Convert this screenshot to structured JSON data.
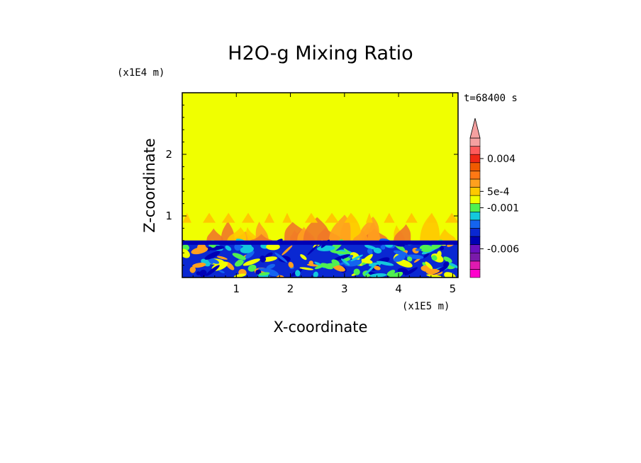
{
  "chart_data": {
    "type": "heatmap",
    "title": "H2O-g Mixing Ratio",
    "xlabel": "X-coordinate",
    "ylabel": "Z-coordinate",
    "x_unit": "(x1E5 m)",
    "y_unit": "(x1E4 m)",
    "time_label": "t=68400 s",
    "xlim": [
      0,
      5.1
    ],
    "ylim": [
      0,
      3.0
    ],
    "x_ticks": [
      1,
      2,
      3,
      4,
      5
    ],
    "y_ticks": [
      1,
      2
    ],
    "colorbar": {
      "orientation": "vertical",
      "extend_max": true,
      "levels": [
        {
          "color": "#ff00cc"
        },
        {
          "color": "#e01ab0"
        },
        {
          "color": "#7a1aaa"
        },
        {
          "color": "#6a10c0"
        },
        {
          "color": "#0000b4"
        },
        {
          "color": "#0a28d2"
        },
        {
          "color": "#1464f0"
        },
        {
          "color": "#14c8dc"
        },
        {
          "color": "#50f050"
        },
        {
          "color": "#f0ff00"
        },
        {
          "color": "#ffc800"
        },
        {
          "color": "#ffa01e"
        },
        {
          "color": "#ff7814"
        },
        {
          "color": "#f05a00"
        },
        {
          "color": "#f02814"
        },
        {
          "color": "#ff5a5a"
        },
        {
          "color": "#f5a0a0"
        }
      ],
      "labels": [
        {
          "text": "0.004",
          "level_index": 14
        },
        {
          "text": "5e-4",
          "level_index": 10
        },
        {
          "text": "-0.001",
          "level_index": 8
        },
        {
          "text": "-0.006",
          "level_index": 3
        }
      ]
    },
    "regions": {
      "background_color": "#f0ff00",
      "plume_colors": [
        "#ffc800",
        "#ffa01e",
        "#f07828"
      ],
      "boundary_layer_top": 0.6,
      "plume_top": 1.05,
      "boundary_layer_colors": [
        "#0a28d2",
        "#0000b4",
        "#1464f0",
        "#14c8dc",
        "#50f050",
        "#f0ff00",
        "#ffa01e"
      ]
    }
  }
}
